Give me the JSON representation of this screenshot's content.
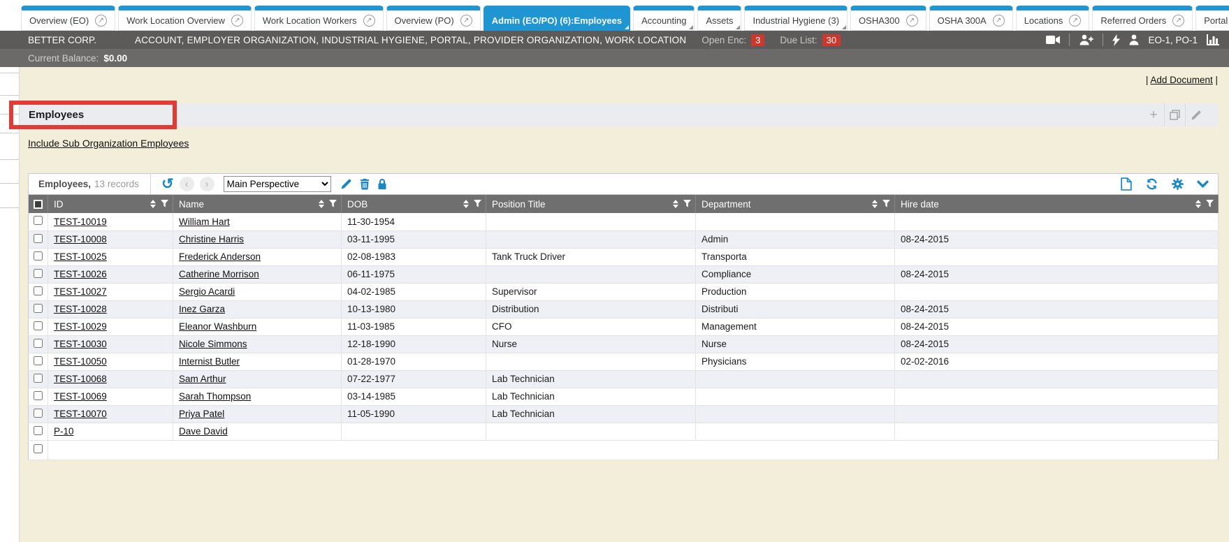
{
  "tabs": [
    {
      "label": "Overview (EO)",
      "type": "external",
      "active": false
    },
    {
      "label": "Work Location Overview",
      "type": "external",
      "active": false
    },
    {
      "label": "Work Location Workers",
      "type": "external",
      "active": false
    },
    {
      "label": "Overview (PO)",
      "type": "external",
      "active": false
    },
    {
      "label": "Admin (EO/PO) (6):Employees",
      "type": "menu",
      "active": true
    },
    {
      "label": "Accounting",
      "type": "menu",
      "active": false
    },
    {
      "label": "Assets",
      "type": "menu",
      "active": false
    },
    {
      "label": "Industrial Hygiene (3)",
      "type": "menu",
      "active": false
    },
    {
      "label": "OSHA300",
      "type": "external",
      "active": false
    },
    {
      "label": "OSHA 300A",
      "type": "external",
      "active": false
    },
    {
      "label": "Locations",
      "type": "external",
      "active": false
    },
    {
      "label": "Referred Orders",
      "type": "external",
      "active": false
    },
    {
      "label": "Portal Manage",
      "type": "plain",
      "active": false
    }
  ],
  "org_bar": {
    "company": "BETTER CORP.",
    "modules": "ACCOUNT, EMPLOYER ORGANIZATION, INDUSTRIAL HYGIENE, PORTAL, PROVIDER ORGANIZATION, WORK LOCATION",
    "open_enc_label": "Open Enc:",
    "open_enc_value": "3",
    "due_list_label": "Due List:",
    "due_list_value": "30",
    "user_label": "EO-1, PO-1"
  },
  "balance_bar": {
    "label": "Current Balance:",
    "value": "$0.00"
  },
  "page": {
    "pipe": "|",
    "add_document": "Add Document",
    "panel_title": "Employees",
    "include_link": "Include Sub Organization Employees"
  },
  "grid_toolbar": {
    "title": "Employees,",
    "records": "13 records",
    "perspective": "Main Perspective"
  },
  "table": {
    "columns": [
      "ID",
      "Name",
      "DOB",
      "Position Title",
      "Department",
      "Hire date"
    ],
    "rows": [
      {
        "id": "TEST-10019",
        "name": "William Hart",
        "dob": "11-30-1954",
        "position": "",
        "department": "",
        "hire": ""
      },
      {
        "id": "TEST-10008",
        "name": "Christine Harris",
        "dob": "03-11-1995",
        "position": "",
        "department": "Admin",
        "hire": "08-24-2015"
      },
      {
        "id": "TEST-10025",
        "name": "Frederick Anderson",
        "dob": "02-08-1983",
        "position": "Tank Truck Driver",
        "department": "Transporta",
        "hire": ""
      },
      {
        "id": "TEST-10026",
        "name": "Catherine Morrison",
        "dob": "06-11-1975",
        "position": "",
        "department": "Compliance",
        "hire": "08-24-2015"
      },
      {
        "id": "TEST-10027",
        "name": "Sergio Acardi",
        "dob": "04-02-1985",
        "position": "Supervisor",
        "department": "Production",
        "hire": ""
      },
      {
        "id": "TEST-10028",
        "name": "Inez Garza",
        "dob": "10-13-1980",
        "position": "Distribution",
        "department": "Distributi",
        "hire": "08-24-2015"
      },
      {
        "id": "TEST-10029",
        "name": "Eleanor Washburn",
        "dob": "11-03-1985",
        "position": "CFO",
        "department": "Management",
        "hire": "08-24-2015"
      },
      {
        "id": "TEST-10030",
        "name": "Nicole Simmons",
        "dob": "12-18-1990",
        "position": "Nurse",
        "department": "Nurse",
        "hire": "08-24-2015"
      },
      {
        "id": "TEST-10050",
        "name": "Internist Butler",
        "dob": "01-28-1970",
        "position": "",
        "department": "Physicians",
        "hire": "02-02-2016"
      },
      {
        "id": "TEST-10068",
        "name": "Sam Arthur",
        "dob": "07-22-1977",
        "position": "Lab Technician",
        "department": "",
        "hire": ""
      },
      {
        "id": "TEST-10069",
        "name": "Sarah Thompson",
        "dob": "03-14-1985",
        "position": "Lab Technician",
        "department": "",
        "hire": ""
      },
      {
        "id": "TEST-10070",
        "name": "Priya Patel",
        "dob": "11-05-1990",
        "position": "Lab Technician",
        "department": "",
        "hire": ""
      },
      {
        "id": "P-10",
        "name": "Dave David",
        "dob": "",
        "position": "",
        "department": "",
        "hire": ""
      }
    ]
  },
  "icons": {
    "external_glyph": "↗",
    "undo_glyph": "↺",
    "chevron_left_glyph": "‹",
    "chevron_right_glyph": "›",
    "plus_glyph": "+"
  },
  "colors": {
    "accent_blue": "#1f96d2",
    "icon_blue": "#1787c6",
    "badge_red": "#ce372c",
    "annotation_red": "#e23b35",
    "dark_bar": "#5c5b59",
    "balance_bar": "#6b6a68",
    "table_header_gray": "#6f6f6f",
    "alt_row": "#eef0f5",
    "page_cream": "#f3eeda"
  }
}
